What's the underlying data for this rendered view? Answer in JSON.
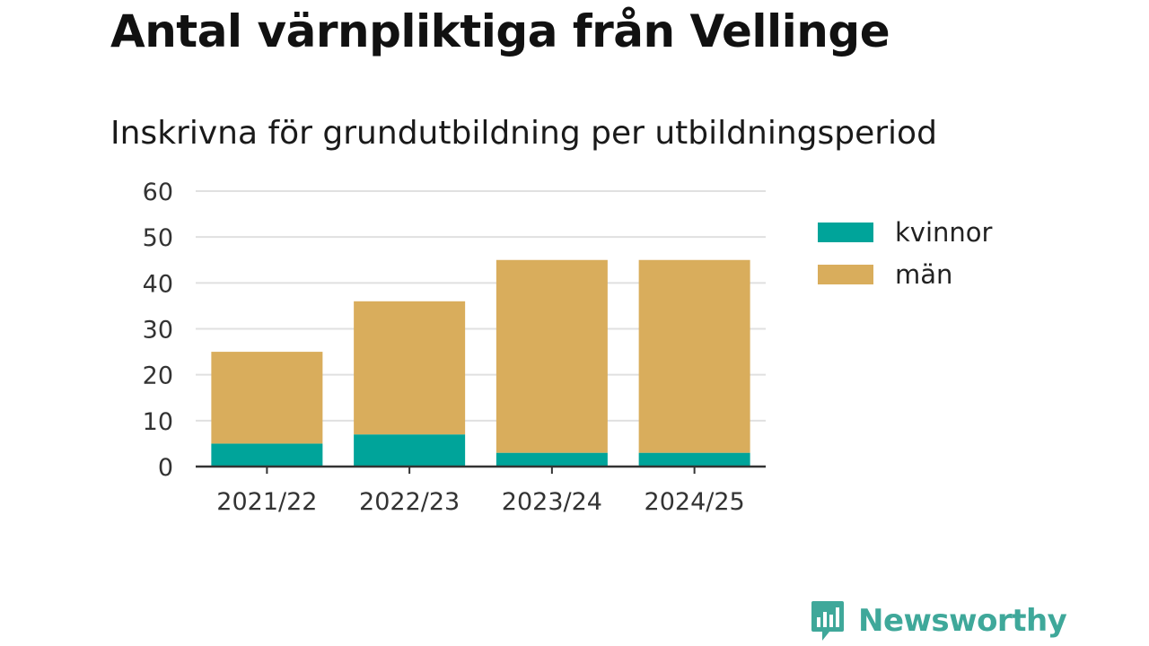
{
  "title": "Antal värnpliktiga från Vellinge",
  "subtitle": "Inskrivna för grundutbildning per utbildningsperiod",
  "brand": {
    "name": "Newsworthy",
    "color": "#3fa89a"
  },
  "chart_data": {
    "type": "bar",
    "stacked": true,
    "categories": [
      "2021/22",
      "2022/23",
      "2023/24",
      "2024/25"
    ],
    "series": [
      {
        "name": "kvinnor",
        "color": "#00a49a",
        "values": [
          5,
          7,
          3,
          3
        ]
      },
      {
        "name": "män",
        "color": "#d9ad5c",
        "values": [
          20,
          29,
          42,
          42
        ]
      }
    ],
    "ylim": [
      0,
      60
    ],
    "yticks": [
      0,
      10,
      20,
      30,
      40,
      50,
      60
    ],
    "grid": true,
    "legend": "right"
  }
}
